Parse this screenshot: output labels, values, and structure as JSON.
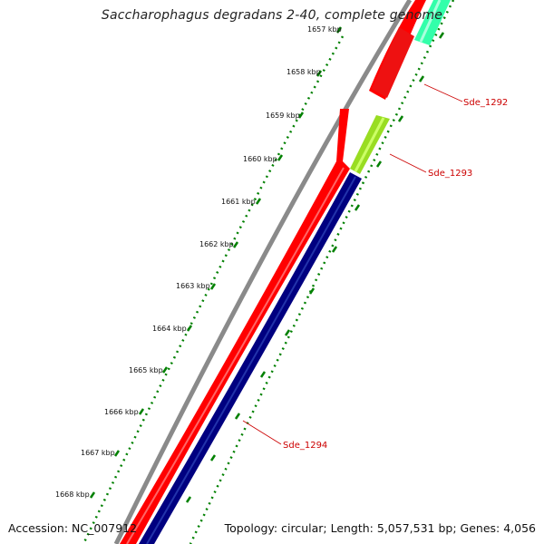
{
  "title": "Saccharophagus degradans 2-40, complete genome",
  "accession_text": "Accession: NC_007912",
  "summary_text": "Topology: circular; Length: 5,057,531 bp; Genes: 4,056",
  "colors": {
    "backbone": "#808080",
    "gene_red": "#ff0000",
    "gene_navy": "#000080",
    "gene_green": "#99dd22",
    "gene_teal": "#33ffaa",
    "tick": "#008000",
    "label": "#cc0000"
  },
  "ticks": [
    "1657 kbp",
    "1658 kbp",
    "1659 kbp",
    "1660 kbp",
    "1661 kbp",
    "1662 kbp",
    "1663 kbp",
    "1664 kbp",
    "1665 kbp",
    "1666 kbp",
    "1667 kbp",
    "1668 kbp"
  ],
  "gene_labels": [
    "Sde_1292",
    "Sde_1293",
    "Sde_1294"
  ]
}
